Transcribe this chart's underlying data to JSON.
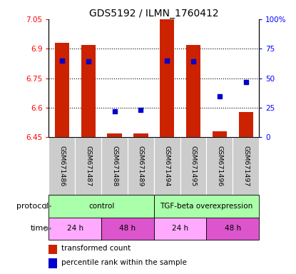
{
  "title": "GDS5192 / ILMN_1760412",
  "samples": [
    "GSM671486",
    "GSM671487",
    "GSM671488",
    "GSM671489",
    "GSM671494",
    "GSM671495",
    "GSM671496",
    "GSM671497"
  ],
  "bar_values": [
    6.93,
    6.92,
    6.47,
    6.47,
    7.05,
    6.92,
    6.48,
    6.58
  ],
  "blue_values": [
    65,
    64,
    22,
    23,
    65,
    64,
    35,
    47
  ],
  "y_min": 6.45,
  "y_max": 7.05,
  "y_ticks": [
    6.45,
    6.6,
    6.75,
    6.9,
    7.05
  ],
  "y_tick_labels": [
    "6.45",
    "6.6",
    "6.75",
    "6.9",
    "7.05"
  ],
  "right_y_ticks": [
    0,
    25,
    50,
    75,
    100
  ],
  "right_y_labels": [
    "0",
    "25",
    "50",
    "75",
    "100%"
  ],
  "bar_color": "#cc2200",
  "blue_color": "#0000cc",
  "bar_bottom": 6.45,
  "protocol_defs": [
    {
      "label": "control",
      "start": 0,
      "end": 4,
      "color": "#aaffaa"
    },
    {
      "label": "TGF-beta overexpression",
      "start": 4,
      "end": 8,
      "color": "#aaffaa"
    }
  ],
  "time_defs": [
    {
      "label": "24 h",
      "start": 0,
      "end": 2,
      "color": "#ffaaff"
    },
    {
      "label": "48 h",
      "start": 2,
      "end": 4,
      "color": "#dd55cc"
    },
    {
      "label": "24 h",
      "start": 4,
      "end": 6,
      "color": "#ffaaff"
    },
    {
      "label": "48 h",
      "start": 6,
      "end": 8,
      "color": "#dd55cc"
    }
  ],
  "tick_area_color": "#cccccc",
  "bg_color": "#ffffff",
  "grid_dotted_at": [
    6.6,
    6.75,
    6.9
  ]
}
